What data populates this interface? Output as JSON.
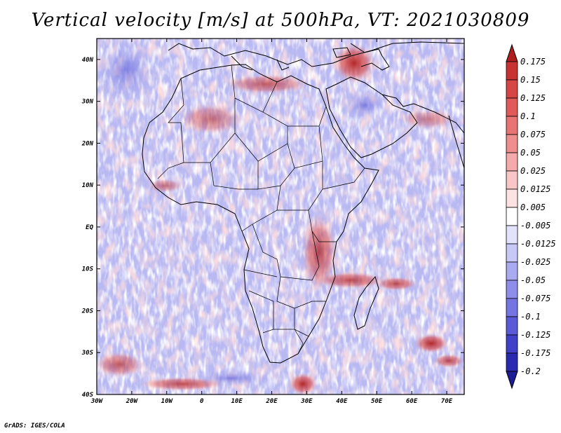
{
  "title": "Vertical velocity [m/s] at 500hPa, VT: 2021030809",
  "footer": "GrADS: IGES/COLA",
  "map": {
    "lon_range": [
      -30,
      75
    ],
    "lat_range": [
      -40,
      45
    ],
    "lon_ticks": [
      {
        "value": -30,
        "label": "30W"
      },
      {
        "value": -20,
        "label": "20W"
      },
      {
        "value": -10,
        "label": "10W"
      },
      {
        "value": 0,
        "label": "0"
      },
      {
        "value": 10,
        "label": "10E"
      },
      {
        "value": 20,
        "label": "20E"
      },
      {
        "value": 30,
        "label": "30E"
      },
      {
        "value": 40,
        "label": "40E"
      },
      {
        "value": 50,
        "label": "50E"
      },
      {
        "value": 60,
        "label": "60E"
      },
      {
        "value": 70,
        "label": "70E"
      }
    ],
    "lat_ticks": [
      {
        "value": 40,
        "label": "40N"
      },
      {
        "value": 30,
        "label": "30N"
      },
      {
        "value": 20,
        "label": "20N"
      },
      {
        "value": 10,
        "label": "10N"
      },
      {
        "value": 0,
        "label": "EQ"
      },
      {
        "value": -10,
        "label": "10S"
      },
      {
        "value": -20,
        "label": "20S"
      },
      {
        "value": -30,
        "label": "30S"
      },
      {
        "value": -40,
        "label": "40S"
      }
    ]
  },
  "colorbar": {
    "levels": [
      "0.175",
      "0.15",
      "0.125",
      "0.1",
      "0.075",
      "0.05",
      "0.025",
      "0.0125",
      "0.005",
      "-0.005",
      "-0.0125",
      "-0.025",
      "-0.05",
      "-0.075",
      "-0.1",
      "-0.125",
      "-0.175",
      "-0.2"
    ],
    "colors": [
      "#b01e1e",
      "#c83232",
      "#d64646",
      "#e05a5a",
      "#e87474",
      "#ee8e8e",
      "#f4aaaa",
      "#f8c6c6",
      "#fce2e2",
      "#ffffff",
      "#e2e2fc",
      "#c8c8f6",
      "#aaaaf0",
      "#8e8eea",
      "#7474e2",
      "#5a5ad8",
      "#4040c8",
      "#2a2ab0",
      "#1c1c96"
    ]
  }
}
